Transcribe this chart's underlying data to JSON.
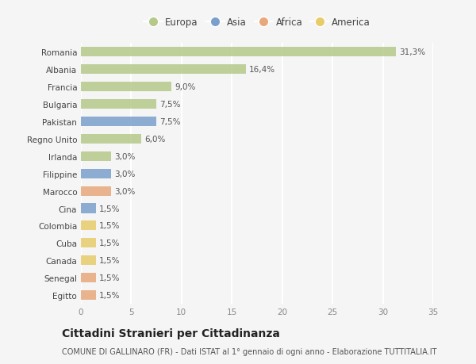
{
  "countries": [
    "Romania",
    "Albania",
    "Francia",
    "Bulgaria",
    "Pakistan",
    "Regno Unito",
    "Irlanda",
    "Filippine",
    "Marocco",
    "Cina",
    "Colombia",
    "Cuba",
    "Canada",
    "Senegal",
    "Egitto"
  ],
  "values": [
    31.3,
    16.4,
    9.0,
    7.5,
    7.5,
    6.0,
    3.0,
    3.0,
    3.0,
    1.5,
    1.5,
    1.5,
    1.5,
    1.5,
    1.5
  ],
  "labels": [
    "31,3%",
    "16,4%",
    "9,0%",
    "7,5%",
    "7,5%",
    "6,0%",
    "3,0%",
    "3,0%",
    "3,0%",
    "1,5%",
    "1,5%",
    "1,5%",
    "1,5%",
    "1,5%",
    "1,5%"
  ],
  "continents": [
    "Europa",
    "Europa",
    "Europa",
    "Europa",
    "Asia",
    "Europa",
    "Europa",
    "Asia",
    "Africa",
    "Asia",
    "America",
    "America",
    "America",
    "Africa",
    "Africa"
  ],
  "continent_colors": {
    "Europa": "#b5c98a",
    "Asia": "#7b9fcc",
    "Africa": "#e8a87c",
    "America": "#e8cc6a"
  },
  "legend_order": [
    "Europa",
    "Asia",
    "Africa",
    "America"
  ],
  "xlim": [
    0,
    35
  ],
  "xticks": [
    0,
    5,
    10,
    15,
    20,
    25,
    30,
    35
  ],
  "title": "Cittadini Stranieri per Cittadinanza",
  "subtitle": "COMUNE DI GALLINARO (FR) - Dati ISTAT al 1° gennaio di ogni anno - Elaborazione TUTTITALIA.IT",
  "background_color": "#f5f5f5",
  "grid_color": "#ffffff",
  "bar_height": 0.55,
  "label_fontsize": 7.5,
  "tick_fontsize": 7.5,
  "ytick_fontsize": 7.5,
  "title_fontsize": 10,
  "subtitle_fontsize": 7
}
